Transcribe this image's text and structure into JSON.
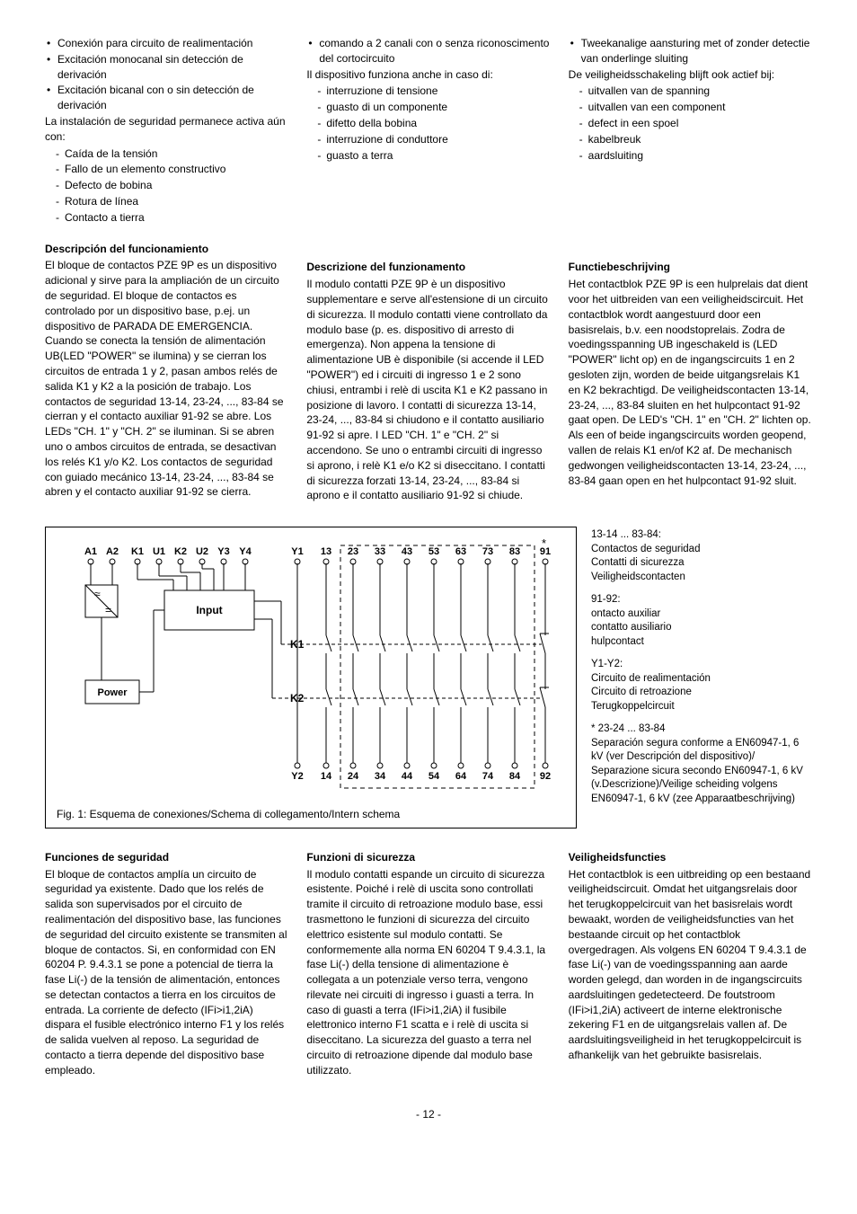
{
  "col1": {
    "bullets": [
      "Conexión para circuito de realimentación",
      "Excitación monocanal sin detección de derivación",
      "Excitación bicanal con o sin detección de derivación"
    ],
    "intro": "La instalación de seguridad permanece activa aún con:",
    "dashes": [
      "Caída de la tensión",
      "Fallo de un elemento constructivo",
      "Defecto de bobina",
      "Rotura de línea",
      "Contacto a tierra"
    ],
    "heading": "Descripción del funcionamiento",
    "body": "El bloque de contactos PZE 9P es un dispositivo adicional y sirve para la ampliación de un circuito de seguridad. El bloque de contactos es controlado por un dispositivo base, p.ej. un dispositivo de PARADA DE EMERGENCIA. Cuando se conecta la tensión de alimentación UB(LED \"POWER\" se ilumina) y se cierran los circuitos de entrada 1 y 2, pasan ambos relés de salida K1 y K2 a la posición de trabajo. Los contactos de seguridad 13-14, 23-24, ..., 83-84 se cierran y el contacto auxiliar 91-92 se abre. Los LEDs \"CH. 1\" y \"CH. 2\" se iluminan. Si se abren uno o ambos circuitos de entrada, se desactivan los relés K1 y/o K2. Los contactos de seguridad con guiado mecánico 13-14, 23-24, ..., 83-84 se abren y el contacto auxiliar 91-92 se cierra.",
    "sec_heading": "Funciones de seguridad",
    "sec_body": "El bloque de contactos amplía un circuito de seguridad ya existente. Dado que los relés de salida son supervisados por el circuito de realimentación del dispositivo base, las funciones de seguridad del circuito existente se transmiten al bloque de contactos. Si, en conformidad con EN 60204 P. 9.4.3.1 se pone a potencial de tierra la fase Li(-) de la tensión de alimentación, entonces se detectan contactos a tierra en los circuitos de entrada. La corriente de defecto (IFi>i1,2iA) dispara el fusible electrónico interno F1 y los relés de salida vuelven al reposo. La seguridad de contacto a tierra depende del dispositivo base empleado."
  },
  "col2": {
    "bullets": [
      "comando a 2 canali con o senza riconoscimento del cortocircuito"
    ],
    "intro": "Il dispositivo funziona anche in caso di:",
    "dashes": [
      "interruzione di tensione",
      "guasto di un componente",
      "difetto della bobina",
      "interruzione di conduttore",
      "guasto a terra"
    ],
    "heading": "Descrizione del funzionamento",
    "body": "Il modulo contatti PZE 9P è un dispositivo supplementare e serve all'estensione di un circuito di sicurezza. Il modulo contatti viene controllato da modulo base (p. es. dispositivo di arresto di emergenza). Non appena la tensione di alimentazione UB è disponibile (si accende il LED \"POWER\") ed i circuiti di ingresso 1 e 2 sono chiusi, entrambi i relè di uscita K1 e K2 passano in posizione di lavoro. I contatti di sicurezza 13-14, 23-24, ..., 83-84 si chiudono e il contatto ausiliario 91-92 si apre. I LED \"CH. 1\" e \"CH. 2\" si accendono. Se uno o entrambi circuiti di ingresso si aprono, i relè K1 e/o K2 si diseccitano. I contatti di sicurezza forzati 13-14, 23-24, ..., 83-84 si aprono e il contatto ausiliario 91-92 si chiude.",
    "sec_heading": "Funzioni di sicurezza",
    "sec_body": "Il modulo contatti espande un circuito di sicurezza esistente. Poiché i relè di uscita sono controllati tramite il circuito di retroazione modulo base, essi trasmettono le funzioni di sicurezza del circuito elettrico esistente sul modulo contatti. Se conformemente alla norma EN 60204 T 9.4.3.1, la fase Li(-) della tensione di alimentazione è collegata a un potenziale verso terra, vengono rilevate nei circuiti di ingresso i guasti a terra. In caso di guasti a terra (IFi>i1,2iA) il fusibile elettronico interno F1 scatta e i relè di uscita si diseccitano. La sicurezza del guasto a terra nel circuito di retroazione dipende dal modulo base utilizzato."
  },
  "col3": {
    "bullets": [
      "Tweekanalige aansturing met of zonder detectie van onderlinge sluiting"
    ],
    "intro": "De veiligheidsschakeling blijft ook actief bij:",
    "dashes": [
      "uitvallen van de spanning",
      "uitvallen van een component",
      "defect in een spoel",
      "kabelbreuk",
      "aardsluiting"
    ],
    "heading": "Functiebeschrijving",
    "body": "Het contactblok PZE 9P is een hulprelais dat dient voor het uitbreiden van een veiligheidscircuit. Het contactblok wordt aangestuurd door een basisrelais, b.v. een noodstoprelais. Zodra de voedingsspanning UB ingeschakeld is (LED \"POWER\" licht op) en de ingangscircuits 1 en 2 gesloten zijn, worden de beide uitgangsrelais K1 en K2 bekrachtigd. De veiligheidscontacten 13-14, 23-24, ..., 83-84 sluiten en het hulpcontact 91-92 gaat open. De LED's \"CH. 1\" en \"CH. 2\" lichten op. Als een of beide ingangscircuits worden geopend, vallen de relais K1 en/of K2 af. De mechanisch gedwongen veiligheidscontacten 13-14, 23-24, ..., 83-84 gaan open en het hulpcontact 91-92 sluit.",
    "sec_heading": "Veiligheidsfuncties",
    "sec_body": "Het contactblok is een uitbreiding op een bestaand veiligheidscircuit. Omdat het uitgangsrelais door het terugkoppelcircuit van het basisrelais wordt bewaakt, worden de veiligheidsfuncties van het bestaande circuit op het contactblok overgedragen. Als volgens EN 60204 T 9.4.3.1 de fase Li(-) van de voedingsspanning aan aarde worden gelegd, dan worden in de ingangscircuits aardsluitingen gedetecteerd. De foutstroom (IFi>i1,2iA) activeert de interne elektronische zekering F1 en de uitgangsrelais vallen af. De aardsluitingsveiligheid in het terugkoppelcircuit is afhankelijk van het gebruikte basisrelais."
  },
  "figure": {
    "caption": "Fig. 1: Esquema de conexiones/Schema di collegamento/Intern schema",
    "top_labels": [
      "A1",
      "A2",
      "K1",
      "U1",
      "K2",
      "U2",
      "Y3",
      "Y4",
      "Y1",
      "13",
      "23",
      "33",
      "43",
      "53",
      "63",
      "73",
      "83",
      "91"
    ],
    "bottom_labels": [
      "Y2",
      "14",
      "24",
      "34",
      "44",
      "54",
      "64",
      "74",
      "84",
      "92"
    ],
    "box_input": "Input",
    "box_power": "Power",
    "k1": "K1",
    "k2": "K2",
    "star": "*"
  },
  "legend": {
    "b1_title": "13-14 ... 83-84:",
    "b1_lines": [
      "Contactos de seguridad",
      "Contatti di sicurezza",
      "Veiligheidscontacten"
    ],
    "b2_title": "91-92:",
    "b2_lines": [
      "ontacto auxiliar",
      "contatto ausiliario",
      "hulpcontact"
    ],
    "b3_title": "Y1-Y2:",
    "b3_lines": [
      "Circuito de realimentación",
      "Circuito di retroazione",
      "Terugkoppelcircuit"
    ],
    "b4_title": "* 23-24 ... 83-84",
    "b4_text": "Separación segura conforme a EN60947-1, 6 kV (ver Descripción del dispositivo)/ Separazione sicura secondo EN60947-1, 6 kV (v.Descrizione)/Veilige scheiding volgens EN60947-1, 6 kV (zee Apparaatbeschrijving)"
  },
  "page": "- 12 -"
}
